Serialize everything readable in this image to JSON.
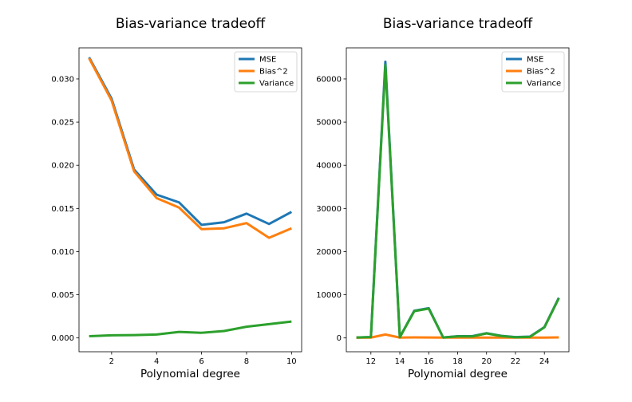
{
  "chart_data": [
    {
      "type": "line",
      "title": "Bias-variance tradeoff",
      "xlabel": "Polynomial degree",
      "ylabel": "",
      "xlim": [
        0.55,
        10.45
      ],
      "ylim": [
        -0.0016,
        0.0336
      ],
      "xticks": [
        2,
        4,
        6,
        8,
        10
      ],
      "xtick_labels": [
        "2",
        "4",
        "6",
        "8",
        "10"
      ],
      "yticks": [
        0,
        0.005,
        0.01,
        0.015,
        0.02,
        0.025,
        0.03
      ],
      "ytick_labels": [
        "0.000",
        "0.005",
        "0.010",
        "0.015",
        "0.020",
        "0.025",
        "0.030"
      ],
      "legend_position": "top-right",
      "x": [
        1,
        2,
        3,
        4,
        5,
        6,
        7,
        8,
        9,
        10
      ],
      "series": [
        {
          "name": "MSE",
          "color": "#1f77b4",
          "values": [
            0.0325,
            0.0277,
            0.0195,
            0.0166,
            0.0157,
            0.0131,
            0.0134,
            0.0144,
            0.0132,
            0.0146
          ]
        },
        {
          "name": "Bias^2",
          "color": "#ff7f0e",
          "values": [
            0.0324,
            0.0275,
            0.0193,
            0.0162,
            0.0151,
            0.0126,
            0.0127,
            0.0133,
            0.0116,
            0.0127
          ]
        },
        {
          "name": "Variance",
          "color": "#2ca02c",
          "values": [
            0.0002,
            0.0003,
            0.00033,
            0.0004,
            0.0007,
            0.0006,
            0.0008,
            0.0013,
            0.0016,
            0.0019
          ]
        }
      ]
    },
    {
      "type": "line",
      "title": "Bias-variance tradeoff",
      "xlabel": "Polynomial degree",
      "ylabel": "",
      "xlim": [
        10.3,
        25.7
      ],
      "ylim": [
        -3200,
        67200
      ],
      "xticks": [
        12,
        14,
        16,
        18,
        20,
        22,
        24
      ],
      "xtick_labels": [
        "12",
        "14",
        "16",
        "18",
        "20",
        "22",
        "24"
      ],
      "yticks": [
        0,
        10000,
        20000,
        30000,
        40000,
        50000,
        60000
      ],
      "ytick_labels": [
        "0",
        "10000",
        "20000",
        "30000",
        "40000",
        "50000",
        "60000"
      ],
      "legend_position": "top-right",
      "x": [
        11,
        12,
        13,
        14,
        15,
        16,
        17,
        18,
        19,
        20,
        21,
        22,
        23,
        24,
        25
      ],
      "series": [
        {
          "name": "MSE",
          "color": "#1f77b4",
          "values": [
            100,
            200,
            64000,
            200,
            6300,
            6900,
            100,
            400,
            400,
            1100,
            500,
            200,
            300,
            2500,
            9300
          ]
        },
        {
          "name": "Bias^2",
          "color": "#ff7f0e",
          "values": [
            50,
            80,
            800,
            80,
            120,
            100,
            80,
            80,
            70,
            80,
            90,
            70,
            80,
            80,
            120
          ]
        },
        {
          "name": "Variance",
          "color": "#2ca02c",
          "values": [
            100,
            200,
            63200,
            150,
            6200,
            6800,
            100,
            350,
            350,
            1050,
            450,
            150,
            250,
            2450,
            9200
          ]
        }
      ]
    }
  ]
}
